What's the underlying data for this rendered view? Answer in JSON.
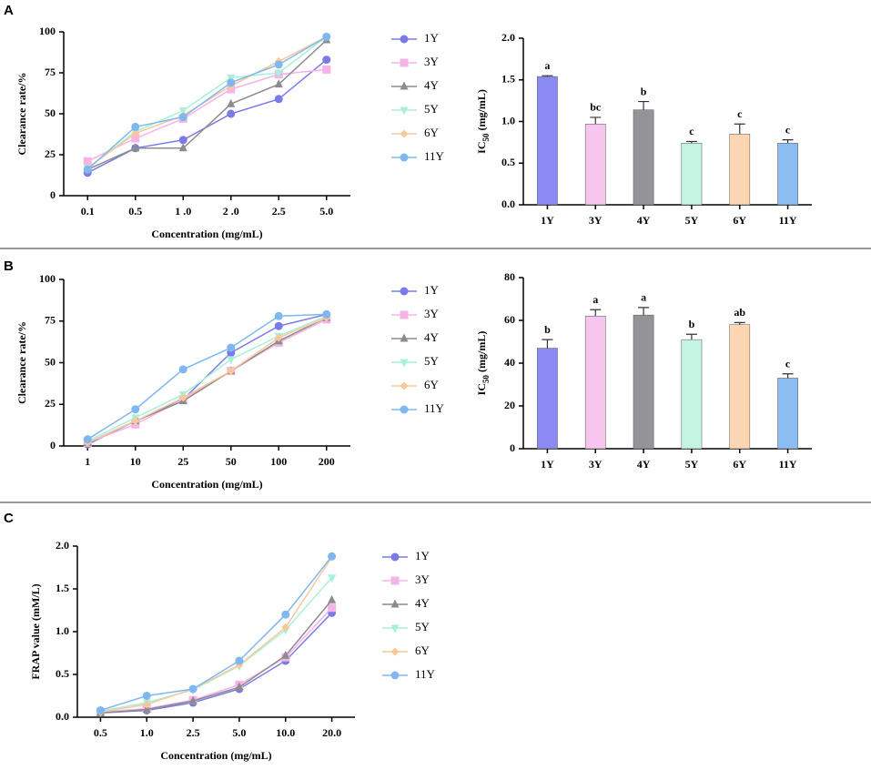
{
  "chart_data": [
    {
      "type": "line",
      "panel": "A",
      "xlabel": "Concentration (mg/mL)",
      "ylabel": [
        "Clearance rate/%"
      ],
      "categories": [
        "0.1",
        "0.5",
        "1 .0",
        "2 .0",
        "2.5",
        "5.0"
      ],
      "ylim": [
        0,
        100
      ],
      "yticks": [
        0,
        25,
        50,
        75,
        100
      ],
      "series": [
        {
          "name": "1Y",
          "color": "#7b7be8",
          "marker": "circle",
          "values": [
            14,
            29,
            34,
            50,
            59,
            83
          ]
        },
        {
          "name": "3Y",
          "color": "#f5b3e8",
          "marker": "square",
          "values": [
            21,
            35,
            47,
            65,
            74,
            77
          ]
        },
        {
          "name": "4Y",
          "color": "#8c8c8c",
          "marker": "triangle",
          "values": [
            16,
            29,
            29,
            56,
            68,
            95
          ]
        },
        {
          "name": "5Y",
          "color": "#a8f0d8",
          "marker": "triangle-down",
          "values": [
            17,
            39,
            52,
            72,
            75,
            97
          ]
        },
        {
          "name": "6Y",
          "color": "#f8c89a",
          "marker": "diamond",
          "values": [
            17,
            38,
            49,
            67,
            82,
            97
          ]
        },
        {
          "name": "11Y",
          "color": "#7fb8f0",
          "marker": "circle",
          "values": [
            16,
            42,
            48,
            69,
            80,
            97
          ]
        }
      ]
    },
    {
      "type": "bar",
      "ylabel": [
        "IC",
        "50",
        " (mg/mL)"
      ],
      "categories": [
        "1Y",
        "3Y",
        "4Y",
        "5Y",
        "6Y",
        "11Y"
      ],
      "values": [
        1.54,
        0.97,
        1.14,
        0.74,
        0.85,
        0.74
      ],
      "errors": [
        0.01,
        0.08,
        0.1,
        0.02,
        0.12,
        0.04
      ],
      "annotations": [
        "a",
        "bc",
        "b",
        "c",
        "c",
        "c"
      ],
      "colors": [
        "#8a8af2",
        "#f7c6ee",
        "#939398",
        "#c4f5e2",
        "#fcd6b3",
        "#8cbdf2"
      ],
      "ylim": [
        0,
        2
      ],
      "yticks": [
        {
          "value": 0,
          "label": "0.0"
        },
        {
          "value": 0.5,
          "label": "0.5"
        },
        {
          "value": 1,
          "label": "1.0"
        },
        {
          "value": 1.5,
          "label": "1.5"
        },
        {
          "value": 2,
          "label": "2.0"
        }
      ]
    },
    {
      "type": "line",
      "panel": "B",
      "xlabel": "Concentration (mg/mL)",
      "ylabel": [
        "Clearance rate/%"
      ],
      "categories": [
        "1",
        "10",
        "25",
        "50",
        "100",
        "200"
      ],
      "ylim": [
        0,
        100
      ],
      "yticks": [
        0,
        25,
        50,
        75,
        100
      ],
      "series": [
        {
          "name": "1Y",
          "color": "#7b7be8",
          "marker": "circle",
          "values": [
            1,
            15,
            28,
            56,
            72,
            79
          ]
        },
        {
          "name": "3Y",
          "color": "#f5b3e8",
          "marker": "square",
          "values": [
            2,
            13,
            28,
            45,
            62,
            76
          ]
        },
        {
          "name": "4Y",
          "color": "#8c8c8c",
          "marker": "triangle",
          "values": [
            2,
            15,
            27,
            45,
            63,
            77
          ]
        },
        {
          "name": "5Y",
          "color": "#a8f0d8",
          "marker": "triangle-down",
          "values": [
            3,
            17,
            31,
            52,
            66,
            78
          ]
        },
        {
          "name": "6Y",
          "color": "#f8c89a",
          "marker": "diamond",
          "values": [
            2,
            15,
            29,
            45,
            65,
            77
          ]
        },
        {
          "name": "11Y",
          "color": "#7fb8f0",
          "marker": "circle",
          "values": [
            4,
            22,
            46,
            59,
            78,
            79
          ]
        }
      ]
    },
    {
      "type": "bar",
      "ylabel": [
        "IC",
        "50",
        " (mg/mL)"
      ],
      "categories": [
        "1Y",
        "3Y",
        "4Y",
        "5Y",
        "6Y",
        "11Y"
      ],
      "values": [
        47,
        62,
        62.5,
        51,
        58,
        33
      ],
      "errors": [
        4,
        3,
        3.5,
        2.5,
        1,
        2
      ],
      "annotations": [
        "b",
        "a",
        "a",
        "b",
        "ab",
        "c"
      ],
      "colors": [
        "#8a8af2",
        "#f7c6ee",
        "#939398",
        "#c4f5e2",
        "#fcd6b3",
        "#8cbdf2"
      ],
      "ylim": [
        0,
        80
      ],
      "yticks": [
        0,
        20,
        40,
        60,
        80
      ]
    },
    {
      "type": "line",
      "panel": "C",
      "xlabel": "Concentration (mg/mL)",
      "ylabel": [
        "FRAP value (mM/L)"
      ],
      "categories": [
        "0.5",
        "1.0",
        "2.5",
        "5.0",
        "10.0",
        "20.0"
      ],
      "ylim": [
        0,
        2
      ],
      "yticks": [
        {
          "value": 0,
          "label": "0.0"
        },
        {
          "value": 0.5,
          "label": "0.5"
        },
        {
          "value": 1,
          "label": "1.0"
        },
        {
          "value": 1.5,
          "label": "1.5"
        },
        {
          "value": 2,
          "label": "2.0"
        }
      ],
      "series": [
        {
          "name": "1Y",
          "color": "#7b7be8",
          "marker": "circle",
          "values": [
            0.05,
            0.08,
            0.17,
            0.33,
            0.66,
            1.22
          ]
        },
        {
          "name": "3Y",
          "color": "#f5b3e8",
          "marker": "square",
          "values": [
            0.06,
            0.1,
            0.2,
            0.38,
            0.7,
            1.28
          ]
        },
        {
          "name": "4Y",
          "color": "#8c8c8c",
          "marker": "triangle",
          "values": [
            0.05,
            0.09,
            0.19,
            0.35,
            0.72,
            1.37
          ]
        },
        {
          "name": "5Y",
          "color": "#a8f0d8",
          "marker": "triangle-down",
          "values": [
            0.07,
            0.17,
            0.32,
            0.6,
            1.02,
            1.63
          ]
        },
        {
          "name": "6Y",
          "color": "#f8c89a",
          "marker": "diamond",
          "values": [
            0.06,
            0.15,
            0.33,
            0.61,
            1.05,
            1.87
          ]
        },
        {
          "name": "11Y",
          "color": "#7fb8f0",
          "marker": "circle",
          "values": [
            0.08,
            0.25,
            0.33,
            0.66,
            1.2,
            1.88
          ]
        }
      ]
    }
  ]
}
